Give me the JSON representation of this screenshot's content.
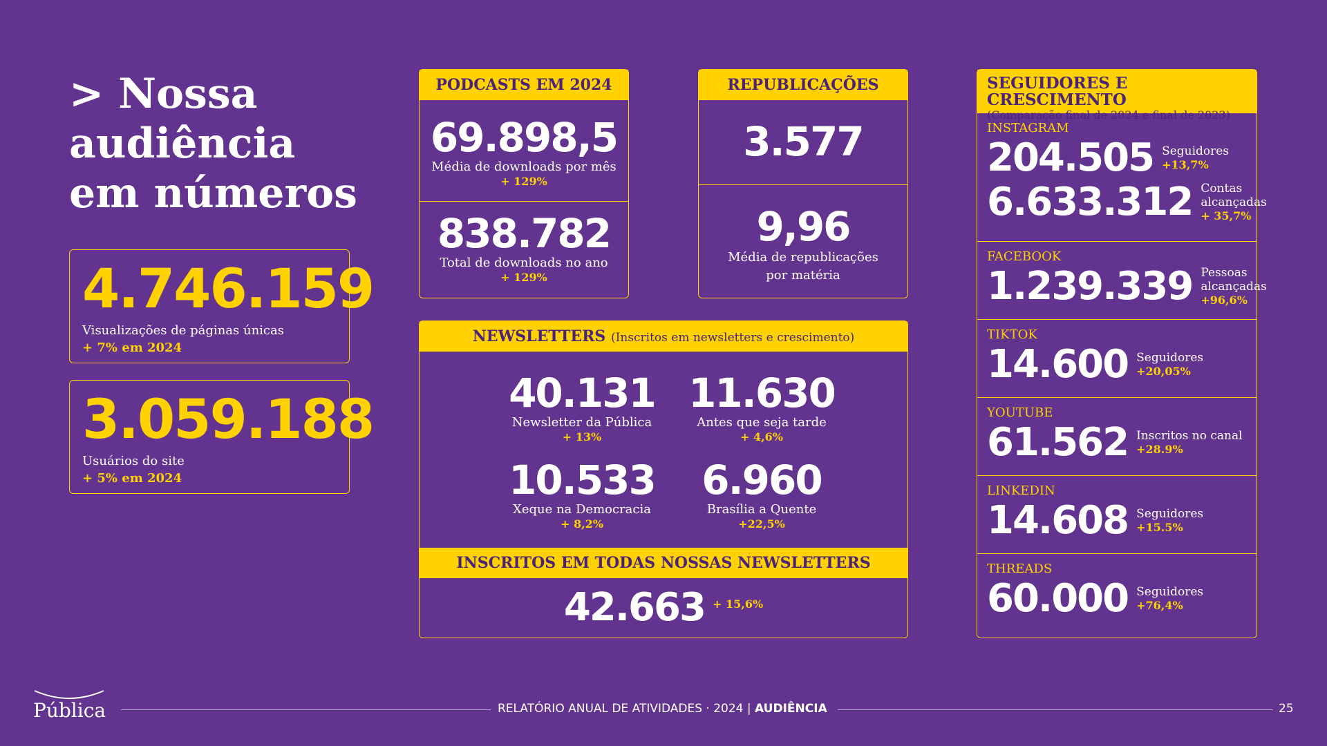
{
  "title": {
    "arrow": ">",
    "line1": "Nossa",
    "line2": "audiência",
    "line3": "em números"
  },
  "kpis": [
    {
      "value": "4.746.159",
      "label": "Visualizações de páginas únicas",
      "change": "+ 7% em 2024"
    },
    {
      "value": "3.059.188",
      "label": "Usuários do site",
      "change": "+ 5% em 2024"
    }
  ],
  "podcasts": {
    "header": "PODCASTS EM 2024",
    "items": [
      {
        "value": "69.898,5",
        "label": "Média de downloads por mês",
        "change": "+ 129%"
      },
      {
        "value": "838.782",
        "label": "Total de downloads no ano",
        "change": "+ 129%"
      }
    ]
  },
  "republicacoes": {
    "header": "REPUBLICAÇÕES",
    "total": "3.577",
    "avg_value": "9,96",
    "avg_label_1": "Média de republicações",
    "avg_label_2": "por matéria"
  },
  "newsletters": {
    "header": "NEWSLETTERS",
    "header_sub": "(Inscritos em newsletters e crescimento)",
    "items": [
      {
        "value": "40.131",
        "label": "Newsletter da Pública",
        "change": "+ 13%"
      },
      {
        "value": "11.630",
        "label": "Antes que seja tarde",
        "change": "+ 4,6%"
      },
      {
        "value": "10.533",
        "label": "Xeque na Democracia",
        "change": "+ 8,2%"
      },
      {
        "value": "6.960",
        "label": "Brasília a Quente",
        "change": "+22,5%"
      }
    ],
    "total_header": "INSCRITOS EM TODAS NOSSAS NEWSLETTERS",
    "total_value": "42.663",
    "total_change": "+ 15,6%"
  },
  "social": {
    "header": "SEGUIDORES E CRESCIMENTO",
    "subheader": "(Comparação final de 2024 e final de 2023)",
    "networks": [
      {
        "name": "INSTAGRAM",
        "rows": [
          {
            "value": "204.505",
            "label": "Seguidores",
            "change": "+13,7%"
          },
          {
            "value": "6.633.312",
            "label": "Contas alcançadas",
            "change": "+ 35,7%"
          }
        ]
      },
      {
        "name": "FACEBOOK",
        "rows": [
          {
            "value": "1.239.339",
            "label": "Pessoas alcançadas",
            "change": "+96,6%"
          }
        ]
      },
      {
        "name": "TIKTOK",
        "rows": [
          {
            "value": "14.600",
            "label": "Seguidores",
            "change": "+20,05%"
          }
        ]
      },
      {
        "name": "YOUTUBE",
        "rows": [
          {
            "value": "61.562",
            "label": "Inscritos no canal",
            "change": "+28.9%"
          }
        ]
      },
      {
        "name": "LINKEDIN",
        "rows": [
          {
            "value": "14.608",
            "label": "Seguidores",
            "change": "+15.5%"
          }
        ]
      },
      {
        "name": "THREADS",
        "rows": [
          {
            "value": "60.000",
            "label": "Seguidores",
            "change": "+76,4%"
          }
        ]
      }
    ]
  },
  "footer": {
    "logo": "Pública",
    "report": "RELATÓRIO ANUAL DE ATIVIDADES · 2024",
    "divider": "|",
    "section": "AUDIÊNCIA",
    "page": "25"
  },
  "colors": {
    "background": "#62348f",
    "accent": "#ffd200",
    "header_text": "#4b2479"
  }
}
